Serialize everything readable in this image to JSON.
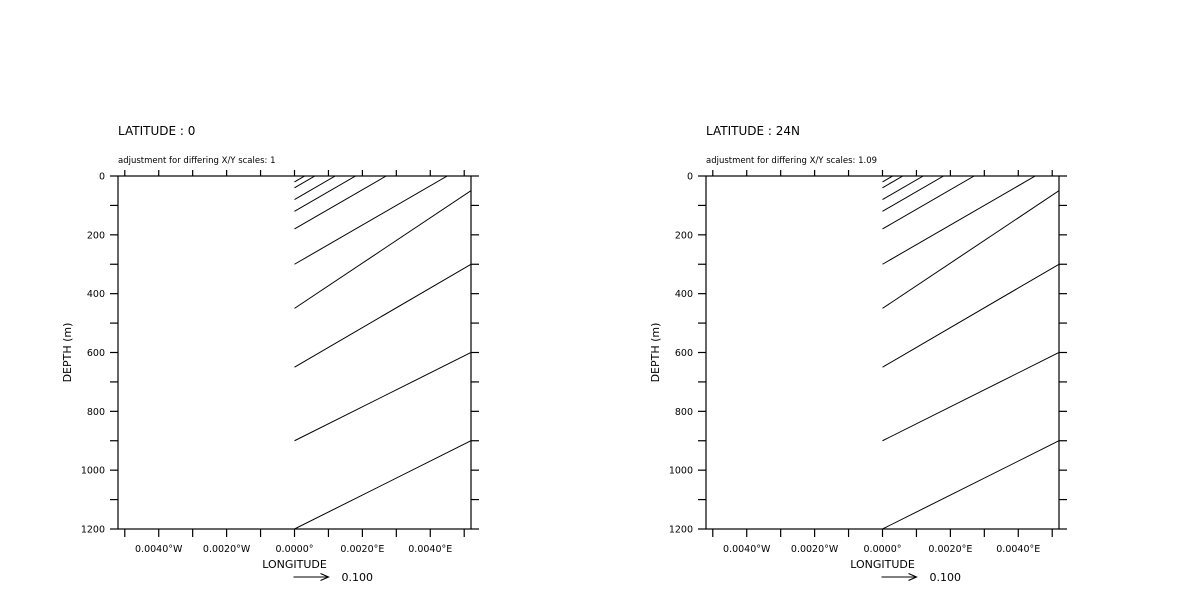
{
  "chart_data": [
    {
      "type": "vector",
      "title": "LATITUDE : 0",
      "note": "adjustment for differing X/Y scales: 1",
      "xlabel": "LONGITUDE",
      "ylabel": "DEPTH (m)",
      "xlim": [
        -0.0052,
        0.0052
      ],
      "ylim": [
        0,
        1200
      ],
      "y_inverted": true,
      "x_ticks": [
        -0.004,
        -0.002,
        0.0,
        0.002,
        0.004
      ],
      "x_tick_labels": [
        "0.0040°W",
        "0.0020°W",
        "0.0000°",
        "0.0020°E",
        "0.0040°E"
      ],
      "x_minor_step": 0.001,
      "y_ticks": [
        0,
        200,
        400,
        600,
        800,
        1000,
        1200
      ],
      "y_tick_labels": [
        "0",
        "200",
        "400",
        "600",
        "800",
        "1000",
        "1200"
      ],
      "y_minor_step": 100,
      "reference_vector": {
        "label": "0.100",
        "value": 0.1
      },
      "lines": [
        {
          "x1": 0.0,
          "y1": 20,
          "x2": 0.0003,
          "y2": 0
        },
        {
          "x1": 0.0,
          "y1": 40,
          "x2": 0.0006,
          "y2": 0
        },
        {
          "x1": 0.0,
          "y1": 80,
          "x2": 0.0012,
          "y2": 0
        },
        {
          "x1": 0.0,
          "y1": 120,
          "x2": 0.0018,
          "y2": 0
        },
        {
          "x1": 0.0,
          "y1": 180,
          "x2": 0.0027,
          "y2": 0
        },
        {
          "x1": 0.0,
          "y1": 300,
          "x2": 0.0045,
          "y2": 0
        },
        {
          "x1": 0.0,
          "y1": 450,
          "x2": 0.0052,
          "y2": 50
        },
        {
          "x1": 0.0,
          "y1": 650,
          "x2": 0.0052,
          "y2": 300
        },
        {
          "x1": 0.0,
          "y1": 900,
          "x2": 0.0052,
          "y2": 600
        },
        {
          "x1": 0.0,
          "y1": 1200,
          "x2": 0.0052,
          "y2": 900
        }
      ]
    },
    {
      "type": "vector",
      "title": "LATITUDE : 24N",
      "note": "adjustment for differing X/Y scales: 1.09",
      "xlabel": "LONGITUDE",
      "ylabel": "DEPTH (m)",
      "xlim": [
        -0.0052,
        0.0052
      ],
      "ylim": [
        0,
        1200
      ],
      "y_inverted": true,
      "x_ticks": [
        -0.004,
        -0.002,
        0.0,
        0.002,
        0.004
      ],
      "x_tick_labels": [
        "0.0040°W",
        "0.0020°W",
        "0.0000°",
        "0.0020°E",
        "0.0040°E"
      ],
      "x_minor_step": 0.001,
      "y_ticks": [
        0,
        200,
        400,
        600,
        800,
        1000,
        1200
      ],
      "y_tick_labels": [
        "0",
        "200",
        "400",
        "600",
        "800",
        "1000",
        "1200"
      ],
      "y_minor_step": 100,
      "reference_vector": {
        "label": "0.100",
        "value": 0.1
      },
      "lines": [
        {
          "x1": 0.0,
          "y1": 20,
          "x2": 0.0003,
          "y2": 0
        },
        {
          "x1": 0.0,
          "y1": 40,
          "x2": 0.0006,
          "y2": 0
        },
        {
          "x1": 0.0,
          "y1": 80,
          "x2": 0.0012,
          "y2": 0
        },
        {
          "x1": 0.0,
          "y1": 120,
          "x2": 0.0018,
          "y2": 0
        },
        {
          "x1": 0.0,
          "y1": 180,
          "x2": 0.0027,
          "y2": 0
        },
        {
          "x1": 0.0,
          "y1": 300,
          "x2": 0.0045,
          "y2": 0
        },
        {
          "x1": 0.0,
          "y1": 450,
          "x2": 0.0052,
          "y2": 50
        },
        {
          "x1": 0.0,
          "y1": 650,
          "x2": 0.0052,
          "y2": 300
        },
        {
          "x1": 0.0,
          "y1": 900,
          "x2": 0.0052,
          "y2": 600
        },
        {
          "x1": 0.0,
          "y1": 1200,
          "x2": 0.0052,
          "y2": 900
        }
      ]
    }
  ]
}
